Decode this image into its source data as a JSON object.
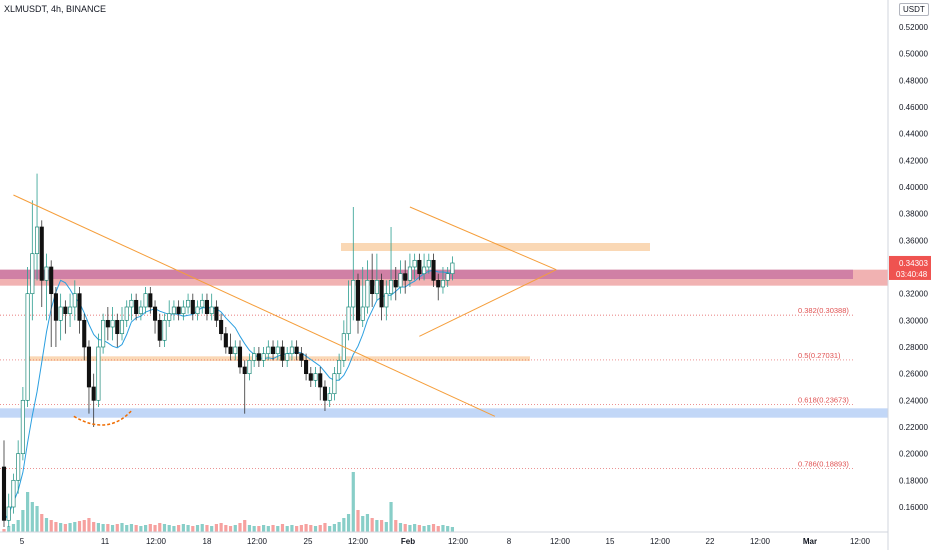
{
  "header": {
    "title": "XLMUSDT, 4h, BINANCE",
    "currency": "USDT"
  },
  "chart_data": {
    "type": "candlestick",
    "symbol": "XLMUSDT",
    "timeframe": "4h",
    "exchange": "BINANCE",
    "y_ticks": [
      "0.52000",
      "0.50000",
      "0.48000",
      "0.46000",
      "0.44000",
      "0.42000",
      "0.40000",
      "0.38000",
      "0.36000",
      "0.34000",
      "0.32000",
      "0.30000",
      "0.28000",
      "0.26000",
      "0.24000",
      "0.22000",
      "0.20000",
      "0.18000",
      "0.16000"
    ],
    "ylim": [
      0.145,
      0.535
    ],
    "x_ticks": [
      "5",
      "11",
      "12:00",
      "18",
      "12:00",
      "25",
      "12:00",
      "Feb",
      "12:00",
      "8",
      "12:00",
      "15",
      "12:00",
      "22",
      "12:00",
      "Mar",
      "12:00"
    ],
    "last_price": "0.34303",
    "countdown": "03:40:48",
    "last_price_value": 0.34303,
    "fib_levels": [
      {
        "label": "0.382(0.30388)",
        "value": 0.30388
      },
      {
        "label": "0.5(0.27031)",
        "value": 0.27031
      },
      {
        "label": "0.618(0.23673)",
        "value": 0.23673
      },
      {
        "label": "0.786(0.18893)",
        "value": 0.18893
      }
    ],
    "zones": [
      {
        "name": "resistance-zone-red",
        "low": 0.326,
        "high": 0.338,
        "color": "#e57373"
      },
      {
        "name": "support-zone-blue",
        "low": 0.227,
        "high": 0.234,
        "color": "#90b7f0"
      },
      {
        "name": "orange-zone-mid",
        "low": 0.2695,
        "high": 0.273,
        "color": "#f5b26b"
      },
      {
        "name": "orange-zone-top",
        "low": 0.352,
        "high": 0.358,
        "color": "#f5b26b"
      }
    ],
    "trendlines": [
      {
        "name": "descending-trendline",
        "from": [
          2,
          0.394
        ],
        "to": [
          104,
          0.228
        ]
      },
      {
        "name": "triangle-upper-line",
        "from": [
          86,
          0.385
        ],
        "to": [
          117,
          0.338
        ]
      },
      {
        "name": "triangle-lower-line",
        "from": [
          88,
          0.288
        ],
        "to": [
          117,
          0.338
        ]
      }
    ],
    "candles": [
      [
        0.19,
        0.15,
        0.21,
        0.145
      ],
      [
        0.15,
        0.16,
        0.17,
        0.145
      ],
      [
        0.16,
        0.18,
        0.185,
        0.155
      ],
      [
        0.18,
        0.2,
        0.21,
        0.17
      ],
      [
        0.2,
        0.24,
        0.25,
        0.195
      ],
      [
        0.24,
        0.32,
        0.34,
        0.235
      ],
      [
        0.32,
        0.35,
        0.39,
        0.3
      ],
      [
        0.35,
        0.37,
        0.41,
        0.33
      ],
      [
        0.37,
        0.33,
        0.375,
        0.31
      ],
      [
        0.33,
        0.34,
        0.35,
        0.3
      ],
      [
        0.34,
        0.32,
        0.345,
        0.28
      ],
      [
        0.32,
        0.3,
        0.325,
        0.28
      ],
      [
        0.3,
        0.31,
        0.32,
        0.285
      ],
      [
        0.31,
        0.305,
        0.315,
        0.29
      ],
      [
        0.305,
        0.31,
        0.32,
        0.295
      ],
      [
        0.31,
        0.32,
        0.33,
        0.3
      ],
      [
        0.32,
        0.3,
        0.325,
        0.29
      ],
      [
        0.3,
        0.28,
        0.305,
        0.27
      ],
      [
        0.28,
        0.25,
        0.285,
        0.23
      ],
      [
        0.25,
        0.24,
        0.26,
        0.22
      ],
      [
        0.24,
        0.28,
        0.29,
        0.235
      ],
      [
        0.28,
        0.3,
        0.305,
        0.275
      ],
      [
        0.3,
        0.295,
        0.31,
        0.285
      ],
      [
        0.295,
        0.3,
        0.31,
        0.285
      ],
      [
        0.3,
        0.29,
        0.305,
        0.28
      ],
      [
        0.29,
        0.3,
        0.31,
        0.285
      ],
      [
        0.3,
        0.31,
        0.315,
        0.295
      ],
      [
        0.31,
        0.315,
        0.32,
        0.3
      ],
      [
        0.315,
        0.305,
        0.32,
        0.3
      ],
      [
        0.305,
        0.31,
        0.315,
        0.3
      ],
      [
        0.31,
        0.32,
        0.325,
        0.305
      ],
      [
        0.32,
        0.31,
        0.325,
        0.305
      ],
      [
        0.31,
        0.3,
        0.315,
        0.29
      ],
      [
        0.3,
        0.285,
        0.305,
        0.28
      ],
      [
        0.285,
        0.3,
        0.305,
        0.28
      ],
      [
        0.3,
        0.305,
        0.315,
        0.295
      ],
      [
        0.305,
        0.31,
        0.315,
        0.3
      ],
      [
        0.31,
        0.305,
        0.315,
        0.3
      ],
      [
        0.305,
        0.31,
        0.315,
        0.3
      ],
      [
        0.31,
        0.315,
        0.32,
        0.305
      ],
      [
        0.315,
        0.305,
        0.32,
        0.3
      ],
      [
        0.305,
        0.31,
        0.315,
        0.3
      ],
      [
        0.31,
        0.315,
        0.32,
        0.305
      ],
      [
        0.315,
        0.305,
        0.32,
        0.3
      ],
      [
        0.305,
        0.31,
        0.32,
        0.3
      ],
      [
        0.31,
        0.3,
        0.315,
        0.295
      ],
      [
        0.3,
        0.29,
        0.305,
        0.285
      ],
      [
        0.29,
        0.28,
        0.295,
        0.275
      ],
      [
        0.28,
        0.275,
        0.29,
        0.27
      ],
      [
        0.275,
        0.28,
        0.285,
        0.27
      ],
      [
        0.28,
        0.265,
        0.285,
        0.26
      ],
      [
        0.265,
        0.26,
        0.27,
        0.23
      ],
      [
        0.26,
        0.27,
        0.275,
        0.255
      ],
      [
        0.27,
        0.275,
        0.28,
        0.265
      ],
      [
        0.275,
        0.27,
        0.28,
        0.265
      ],
      [
        0.27,
        0.275,
        0.28,
        0.265
      ],
      [
        0.275,
        0.28,
        0.285,
        0.27
      ],
      [
        0.28,
        0.275,
        0.285,
        0.27
      ],
      [
        0.275,
        0.28,
        0.285,
        0.27
      ],
      [
        0.28,
        0.27,
        0.285,
        0.265
      ],
      [
        0.27,
        0.275,
        0.28,
        0.265
      ],
      [
        0.275,
        0.28,
        0.285,
        0.27
      ],
      [
        0.28,
        0.275,
        0.285,
        0.27
      ],
      [
        0.275,
        0.27,
        0.28,
        0.265
      ],
      [
        0.27,
        0.26,
        0.275,
        0.255
      ],
      [
        0.26,
        0.255,
        0.265,
        0.25
      ],
      [
        0.255,
        0.26,
        0.265,
        0.25
      ],
      [
        0.26,
        0.25,
        0.265,
        0.24
      ],
      [
        0.25,
        0.24,
        0.255,
        0.232
      ],
      [
        0.24,
        0.245,
        0.25,
        0.235
      ],
      [
        0.245,
        0.26,
        0.265,
        0.24
      ],
      [
        0.26,
        0.27,
        0.275,
        0.255
      ],
      [
        0.27,
        0.29,
        0.3,
        0.265
      ],
      [
        0.29,
        0.31,
        0.33,
        0.285
      ],
      [
        0.31,
        0.33,
        0.385,
        0.3
      ],
      [
        0.33,
        0.3,
        0.335,
        0.29
      ],
      [
        0.3,
        0.31,
        0.34,
        0.295
      ],
      [
        0.31,
        0.33,
        0.345,
        0.305
      ],
      [
        0.33,
        0.32,
        0.35,
        0.31
      ],
      [
        0.32,
        0.33,
        0.35,
        0.315
      ],
      [
        0.33,
        0.31,
        0.335,
        0.3
      ],
      [
        0.31,
        0.32,
        0.33,
        0.3
      ],
      [
        0.32,
        0.33,
        0.37,
        0.315
      ],
      [
        0.33,
        0.325,
        0.34,
        0.315
      ],
      [
        0.325,
        0.335,
        0.345,
        0.32
      ],
      [
        0.335,
        0.33,
        0.345,
        0.32
      ],
      [
        0.33,
        0.34,
        0.35,
        0.325
      ],
      [
        0.34,
        0.345,
        0.35,
        0.33
      ],
      [
        0.345,
        0.335,
        0.35,
        0.33
      ],
      [
        0.335,
        0.34,
        0.35,
        0.33
      ],
      [
        0.34,
        0.345,
        0.35,
        0.335
      ],
      [
        0.345,
        0.33,
        0.35,
        0.325
      ],
      [
        0.33,
        0.325,
        0.335,
        0.315
      ],
      [
        0.325,
        0.33,
        0.34,
        0.32
      ],
      [
        0.33,
        0.335,
        0.34,
        0.325
      ],
      [
        0.335,
        0.343,
        0.348,
        0.33
      ]
    ],
    "volumes": [
      3,
      6,
      8,
      12,
      22,
      40,
      30,
      26,
      18,
      14,
      12,
      10,
      9,
      8,
      9,
      10,
      11,
      12,
      14,
      10,
      9,
      8,
      8,
      7,
      8,
      9,
      7,
      8,
      7,
      6,
      7,
      8,
      7,
      9,
      8,
      7,
      6,
      7,
      8,
      7,
      6,
      7,
      8,
      7,
      6,
      8,
      9,
      7,
      6,
      7,
      9,
      12,
      7,
      6,
      6,
      7,
      6,
      7,
      6,
      8,
      6,
      7,
      6,
      7,
      8,
      7,
      6,
      7,
      9,
      6,
      8,
      10,
      14,
      18,
      60,
      22,
      16,
      18,
      14,
      12,
      12,
      10,
      30,
      12,
      9,
      8,
      7,
      8,
      7,
      6,
      7,
      8,
      6,
      7,
      6,
      5
    ]
  }
}
